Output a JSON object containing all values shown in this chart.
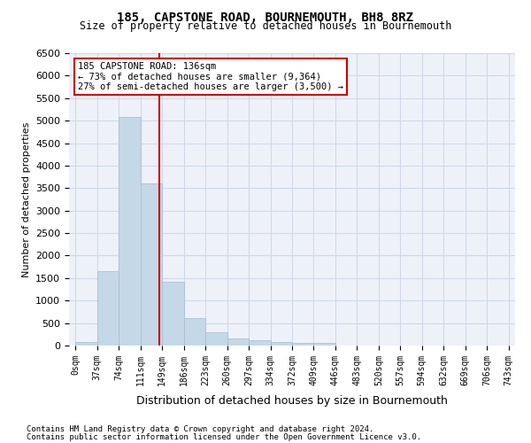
{
  "title": "185, CAPSTONE ROAD, BOURNEMOUTH, BH8 8RZ",
  "subtitle": "Size of property relative to detached houses in Bournemouth",
  "xlabel": "Distribution of detached houses by size in Bournemouth",
  "ylabel": "Number of detached properties",
  "footer_line1": "Contains HM Land Registry data © Crown copyright and database right 2024.",
  "footer_line2": "Contains public sector information licensed under the Open Government Licence v3.0.",
  "bar_color": "#c5d8e8",
  "bar_edge_color": "#a0bcd0",
  "categories": [
    "0sqm",
    "37sqm",
    "74sqm",
    "111sqm",
    "149sqm",
    "186sqm",
    "223sqm",
    "260sqm",
    "297sqm",
    "334sqm",
    "372sqm",
    "409sqm",
    "446sqm",
    "483sqm",
    "520sqm",
    "557sqm",
    "594sqm",
    "632sqm",
    "669sqm",
    "706sqm",
    "743sqm"
  ],
  "values": [
    75,
    1650,
    5080,
    3600,
    1420,
    620,
    295,
    155,
    110,
    85,
    55,
    55,
    0,
    0,
    0,
    0,
    0,
    0,
    0,
    0,
    0
  ],
  "ylim": [
    0,
    6500
  ],
  "yticks": [
    0,
    500,
    1000,
    1500,
    2000,
    2500,
    3000,
    3500,
    4000,
    4500,
    5000,
    5500,
    6000,
    6500
  ],
  "annotation_text": "185 CAPSTONE ROAD: 136sqm\n← 73% of detached houses are smaller (9,364)\n27% of semi-detached houses are larger (3,500) →",
  "annotation_box_color": "#ffffff",
  "annotation_box_edge": "#cc0000",
  "grid_color": "#d0d8e8",
  "background_color": "#eef2f8"
}
